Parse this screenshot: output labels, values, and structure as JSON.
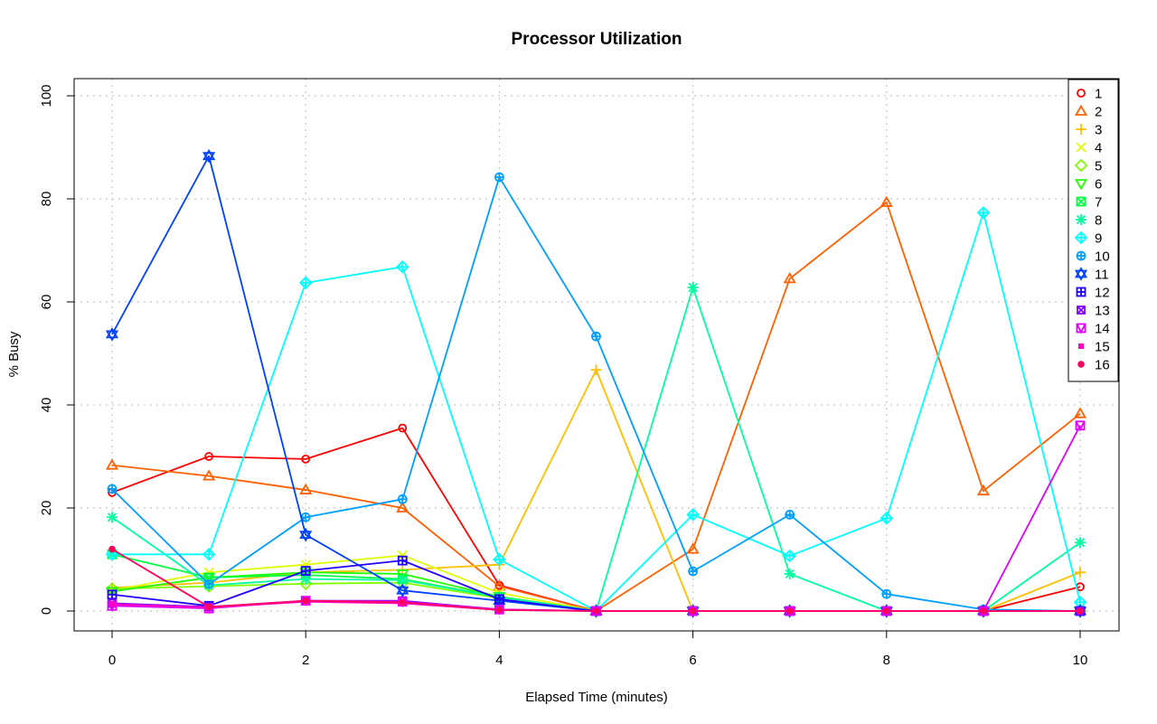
{
  "chart_data": {
    "type": "line",
    "title": "Processor Utilization",
    "xlabel": "Elapsed Time (minutes)",
    "ylabel": "% Busy",
    "xlim": [
      0,
      10
    ],
    "ylim": [
      0,
      100
    ],
    "x_ticks": [
      0,
      2,
      4,
      6,
      8,
      10
    ],
    "y_ticks": [
      0,
      20,
      40,
      60,
      80,
      100
    ],
    "grid": true,
    "legend_position": "top-right",
    "x": [
      0,
      1,
      2,
      3,
      4,
      5,
      6,
      7,
      8,
      9,
      10
    ],
    "series": [
      {
        "name": "1",
        "color": "#ff0000",
        "marker": "circle",
        "values": [
          23,
          30,
          29.5,
          35.5,
          5,
          0,
          0,
          0,
          0,
          0,
          4.7
        ]
      },
      {
        "name": "2",
        "color": "#ff6000",
        "marker": "triangle-up",
        "values": [
          28.3,
          26.2,
          23.5,
          20,
          4.8,
          0,
          12,
          64.5,
          79.3,
          23.3,
          38.3
        ]
      },
      {
        "name": "3",
        "color": "#ffbf00",
        "marker": "plus",
        "values": [
          4.5,
          5.5,
          7.5,
          8,
          9,
          46.8,
          0,
          0,
          0,
          0,
          7.5
        ]
      },
      {
        "name": "4",
        "color": "#dfff00",
        "marker": "cross",
        "values": [
          4,
          7.5,
          9,
          10.8,
          3.5,
          0,
          0,
          0,
          0,
          0,
          0
        ]
      },
      {
        "name": "5",
        "color": "#80ff00",
        "marker": "diamond",
        "values": [
          4.3,
          4.8,
          5.3,
          5.5,
          2.5,
          0,
          0,
          0,
          0,
          0,
          0
        ]
      },
      {
        "name": "6",
        "color": "#20ff00",
        "marker": "triangle-down",
        "values": [
          3.8,
          6.5,
          7.5,
          7.2,
          2.8,
          0,
          0,
          0,
          0,
          0,
          0
        ]
      },
      {
        "name": "7",
        "color": "#00ff40",
        "marker": "square-cross",
        "values": [
          11,
          6.5,
          7,
          6.2,
          2.7,
          0,
          0,
          0,
          0,
          0,
          0
        ]
      },
      {
        "name": "8",
        "color": "#00ff9f",
        "marker": "asterisk",
        "values": [
          18.2,
          5,
          6.2,
          6,
          2.7,
          0,
          62.8,
          7.2,
          0,
          0,
          13.3
        ]
      },
      {
        "name": "9",
        "color": "#00ffff",
        "marker": "diamond-plus",
        "values": [
          11,
          11,
          63.7,
          66.8,
          10,
          0,
          18.7,
          10.7,
          18,
          77.3,
          1.7
        ]
      },
      {
        "name": "10",
        "color": "#009fff",
        "marker": "circle-plus",
        "values": [
          23.7,
          5.2,
          18.2,
          21.7,
          84.2,
          53.3,
          7.7,
          18.7,
          3.3,
          0.3,
          0
        ]
      },
      {
        "name": "11",
        "color": "#0040ff",
        "marker": "star-of-david",
        "values": [
          53.7,
          88.3,
          14.8,
          4,
          2,
          0,
          0,
          0,
          0,
          0,
          0
        ]
      },
      {
        "name": "12",
        "color": "#2000ff",
        "marker": "square-plus",
        "values": [
          3.2,
          1,
          7.8,
          9.8,
          2.3,
          0,
          0,
          0,
          0,
          0,
          0
        ]
      },
      {
        "name": "13",
        "color": "#8000ff",
        "marker": "square-x",
        "values": [
          1.5,
          0.8,
          2,
          2,
          0.3,
          0,
          0,
          0,
          0,
          0,
          0
        ]
      },
      {
        "name": "14",
        "color": "#df00ff",
        "marker": "square-triangle",
        "values": [
          1,
          0.5,
          2,
          1.8,
          0.3,
          0,
          0,
          0,
          0,
          0,
          36
        ]
      },
      {
        "name": "15",
        "color": "#ff00bf",
        "marker": "small-square",
        "values": [
          1.3,
          0.7,
          1.8,
          1.5,
          0.2,
          0,
          0,
          0,
          0,
          0,
          0
        ]
      },
      {
        "name": "16",
        "color": "#ff0060",
        "marker": "dot",
        "values": [
          12,
          0.8,
          2,
          1.7,
          0.2,
          0,
          0,
          0,
          0,
          0,
          0
        ]
      }
    ]
  }
}
